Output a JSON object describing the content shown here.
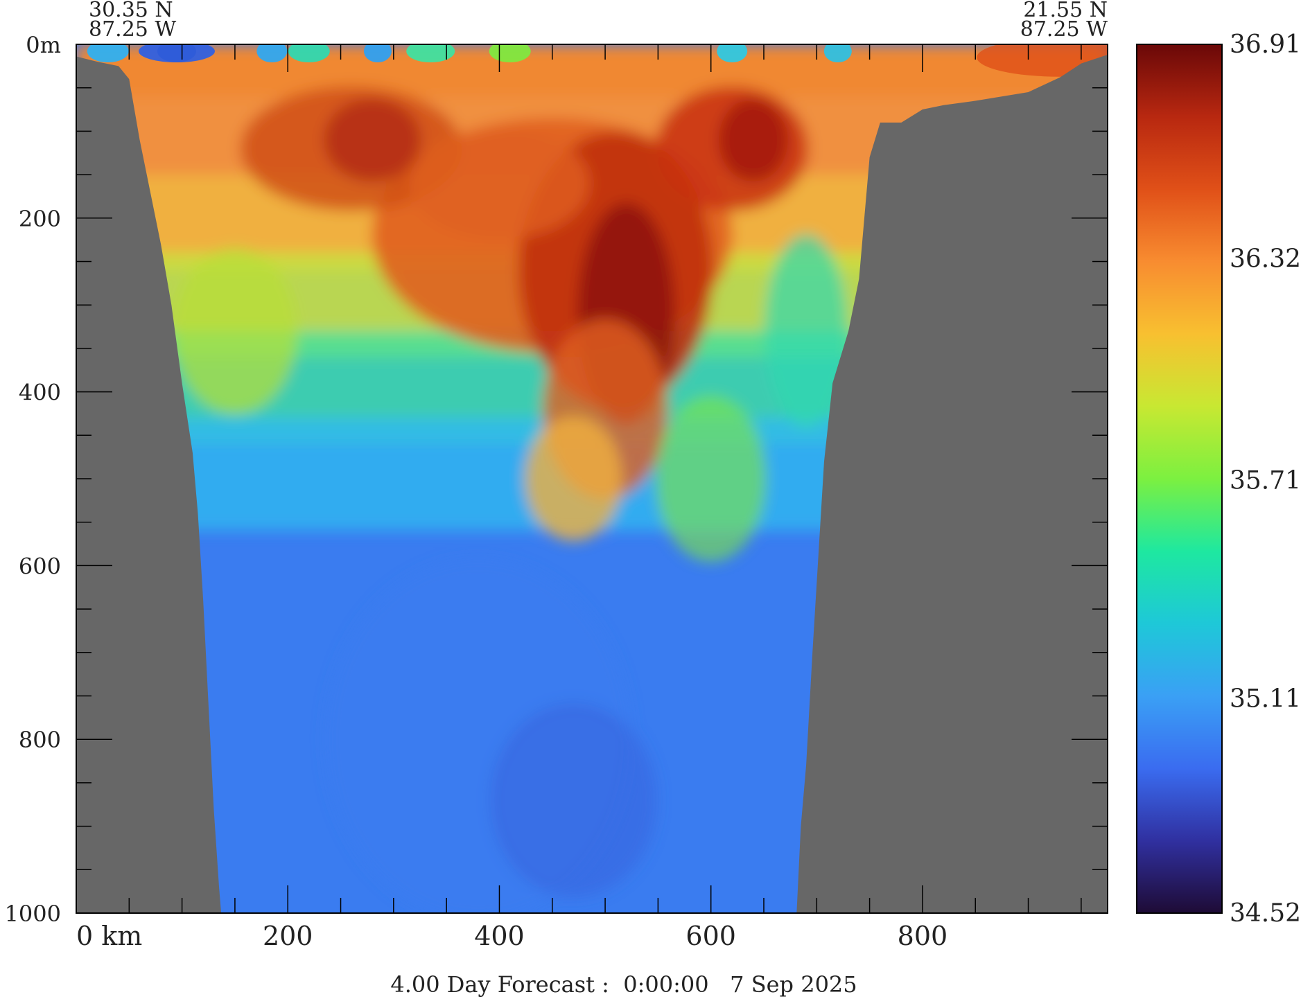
{
  "chart_data": {
    "type": "heatmap",
    "title": "4.00 Day Forecast :  0:00:00   7 Sep 2025",
    "start_point": {
      "lat": "30.35 N",
      "lon": "87.25 W"
    },
    "end_point": {
      "lat": "21.55 N",
      "lon": "87.25 W"
    },
    "x_axis": {
      "unit": "km",
      "range": [
        0,
        975
      ],
      "ticks": [
        {
          "value": 0,
          "label": "0 km"
        },
        {
          "value": 200,
          "label": "200"
        },
        {
          "value": 400,
          "label": "400"
        },
        {
          "value": 600,
          "label": "600"
        },
        {
          "value": 800,
          "label": "800"
        }
      ],
      "minor_step": 50
    },
    "y_axis": {
      "unit": "m",
      "range": [
        0,
        1000
      ],
      "inverted": true,
      "ticks": [
        {
          "value": 0,
          "label": "0m"
        },
        {
          "value": 200,
          "label": "200"
        },
        {
          "value": 400,
          "label": "400"
        },
        {
          "value": 600,
          "label": "600"
        },
        {
          "value": 800,
          "label": "800"
        },
        {
          "value": 1000,
          "label": "1000"
        }
      ],
      "minor_step": 50
    },
    "colorbar": {
      "min": 34.52,
      "max": 36.91,
      "tick_labels": [
        "36.91",
        "36.32",
        "35.71",
        "35.11",
        "34.52"
      ],
      "tick_values": [
        36.91,
        36.32,
        35.71,
        35.11,
        34.52
      ],
      "colors": [
        "#1e0b35",
        "#3030a0",
        "#3a6cf0",
        "#3aa0f5",
        "#1ec8d8",
        "#1ee8a0",
        "#7cf040",
        "#c8e832",
        "#f8c030",
        "#f88c30",
        "#e05018",
        "#b82810",
        "#6a0808"
      ]
    },
    "land_color": "#676767",
    "bathymetry": {
      "left_wall": [
        [
          0,
          14
        ],
        [
          20,
          20
        ],
        [
          40,
          25
        ],
        [
          50,
          40
        ],
        [
          60,
          110
        ],
        [
          70,
          170
        ],
        [
          80,
          230
        ],
        [
          90,
          300
        ],
        [
          100,
          390
        ],
        [
          110,
          470
        ],
        [
          115,
          540
        ],
        [
          120,
          640
        ],
        [
          125,
          760
        ],
        [
          130,
          880
        ],
        [
          135,
          970
        ],
        [
          137,
          1000
        ]
      ],
      "right_wall": [
        [
          681,
          1000
        ],
        [
          685,
          900
        ],
        [
          690,
          830
        ],
        [
          696,
          700
        ],
        [
          700,
          620
        ],
        [
          703,
          560
        ],
        [
          707,
          480
        ],
        [
          715,
          390
        ],
        [
          730,
          330
        ],
        [
          740,
          270
        ],
        [
          745,
          200
        ],
        [
          750,
          130
        ],
        [
          760,
          90
        ],
        [
          780,
          90
        ],
        [
          800,
          75
        ],
        [
          820,
          70
        ],
        [
          850,
          65
        ],
        [
          900,
          55
        ],
        [
          930,
          38
        ],
        [
          950,
          22
        ],
        [
          975,
          12
        ]
      ]
    }
  }
}
